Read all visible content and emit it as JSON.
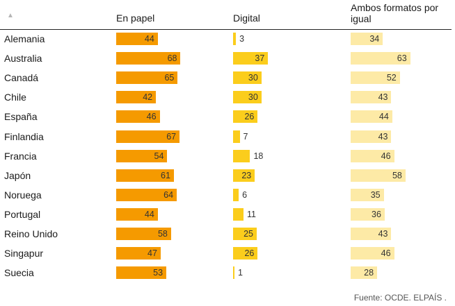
{
  "chart_data": {
    "type": "table",
    "sort_indicator": "▲",
    "series": [
      {
        "name": "En papel",
        "color": "#f59a00",
        "text_inside": true
      },
      {
        "name": "Digital",
        "color": "#fbcd1c",
        "text_inside": false
      },
      {
        "name": "Ambos formatos por igual",
        "color": "#fdeaa6",
        "text_inside": true
      }
    ],
    "header_lines": [
      [
        "En papel"
      ],
      [
        "Digital"
      ],
      [
        "Ambos formatos por",
        "igual"
      ]
    ],
    "categories": [
      "Alemania",
      "Australia",
      "Canadá",
      "Chile",
      "España",
      "Finlandia",
      "Francia",
      "Japón",
      "Noruega",
      "Portugal",
      "Reino Unido",
      "Singapur",
      "Suecia"
    ],
    "values": [
      [
        44,
        3,
        34
      ],
      [
        68,
        37,
        63
      ],
      [
        65,
        30,
        52
      ],
      [
        42,
        30,
        43
      ],
      [
        46,
        26,
        44
      ],
      [
        67,
        7,
        43
      ],
      [
        54,
        18,
        46
      ],
      [
        61,
        23,
        58
      ],
      [
        64,
        6,
        35
      ],
      [
        44,
        11,
        36
      ],
      [
        58,
        25,
        43
      ],
      [
        47,
        26,
        46
      ],
      [
        53,
        1,
        28
      ]
    ],
    "source": "Fuente: OCDE. ELPAÍS ."
  }
}
